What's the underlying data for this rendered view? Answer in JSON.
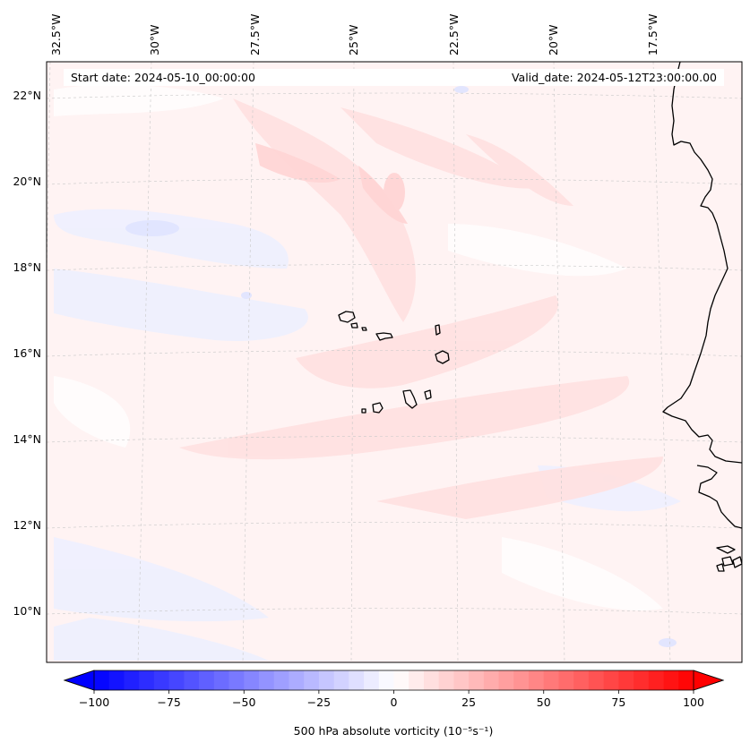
{
  "map": {
    "start_date_label": "Start date: 2024-05-10_00:00:00",
    "valid_date_label": "Valid_date: 2024-05-12T23:00:00.00",
    "longitude_labels": [
      "32.5°W",
      "30°W",
      "27.5°W",
      "25°W",
      "22.5°W",
      "20°W",
      "17.5°W"
    ],
    "latitude_labels": [
      "22°N",
      "20°N",
      "18°N",
      "16°N",
      "14°N",
      "12°N",
      "10°N"
    ],
    "land_outline_color": "#000000",
    "gridline_color": "#c8c8c8"
  },
  "colorbar": {
    "label": "500 hPa absolute vorticity (10⁻⁵s⁻¹)",
    "ticks": [
      "−100",
      "−75",
      "−50",
      "−25",
      "0",
      "25",
      "50",
      "75",
      "100"
    ],
    "tick_values": [
      -100,
      -75,
      -50,
      -25,
      0,
      25,
      50,
      75,
      100
    ],
    "min": -100,
    "max": 100,
    "colormap": "bwr",
    "low_color": "#0000ff",
    "mid_color": "#ffffff",
    "high_color": "#ff0000",
    "extend": "both"
  }
}
